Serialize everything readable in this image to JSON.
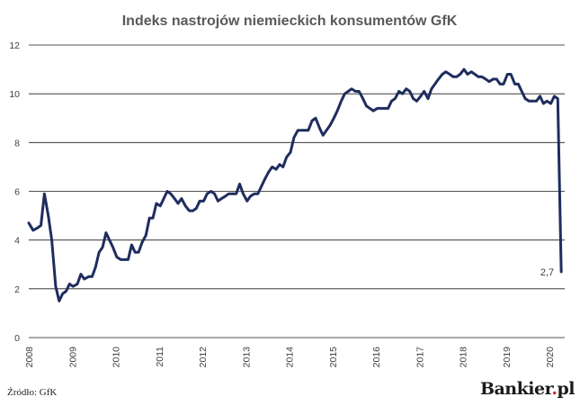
{
  "source_label": "Źródło: GfK",
  "brand": {
    "name": "Bankier",
    "dot": ".",
    "suffix": "pl"
  },
  "chart_data": {
    "type": "line",
    "title": "Indeks nastrojów niemieckich konsumentów GfK",
    "xlabel": "",
    "ylabel": "",
    "ylim": [
      0,
      12
    ],
    "xlim": [
      2008,
      2020.35
    ],
    "grid": true,
    "legend": "none",
    "yticks": [
      "0",
      "2",
      "4",
      "6",
      "8",
      "10",
      "12"
    ],
    "xticks": [
      "2008",
      "2009",
      "2010",
      "2011",
      "2012",
      "2013",
      "2014",
      "2015",
      "2016",
      "2017",
      "2018",
      "2019",
      "2020"
    ],
    "series": [
      {
        "color": "#1f2d5e",
        "points": [
          [
            2008.0,
            4.7
          ],
          [
            2008.1,
            4.4
          ],
          [
            2008.2,
            4.5
          ],
          [
            2008.28,
            4.6
          ],
          [
            2008.36,
            5.9
          ],
          [
            2008.45,
            5.0
          ],
          [
            2008.53,
            4.0
          ],
          [
            2008.62,
            2.1
          ],
          [
            2008.7,
            1.5
          ],
          [
            2008.78,
            1.8
          ],
          [
            2008.86,
            1.9
          ],
          [
            2008.94,
            2.2
          ],
          [
            2009.02,
            2.1
          ],
          [
            2009.12,
            2.2
          ],
          [
            2009.2,
            2.6
          ],
          [
            2009.28,
            2.4
          ],
          [
            2009.38,
            2.5
          ],
          [
            2009.46,
            2.5
          ],
          [
            2009.54,
            2.9
          ],
          [
            2009.62,
            3.5
          ],
          [
            2009.7,
            3.7
          ],
          [
            2009.78,
            4.3
          ],
          [
            2009.86,
            4.0
          ],
          [
            2009.94,
            3.7
          ],
          [
            2010.03,
            3.3
          ],
          [
            2010.12,
            3.2
          ],
          [
            2010.21,
            3.2
          ],
          [
            2010.29,
            3.2
          ],
          [
            2010.37,
            3.8
          ],
          [
            2010.45,
            3.5
          ],
          [
            2010.53,
            3.5
          ],
          [
            2010.61,
            3.9
          ],
          [
            2010.7,
            4.2
          ],
          [
            2010.78,
            4.9
          ],
          [
            2010.86,
            4.9
          ],
          [
            2010.94,
            5.5
          ],
          [
            2011.03,
            5.4
          ],
          [
            2011.11,
            5.7
          ],
          [
            2011.19,
            6.0
          ],
          [
            2011.27,
            5.9
          ],
          [
            2011.36,
            5.7
          ],
          [
            2011.44,
            5.5
          ],
          [
            2011.52,
            5.7
          ],
          [
            2011.61,
            5.4
          ],
          [
            2011.7,
            5.2
          ],
          [
            2011.78,
            5.2
          ],
          [
            2011.86,
            5.3
          ],
          [
            2011.94,
            5.6
          ],
          [
            2012.03,
            5.6
          ],
          [
            2012.11,
            5.9
          ],
          [
            2012.2,
            6.0
          ],
          [
            2012.28,
            5.9
          ],
          [
            2012.36,
            5.6
          ],
          [
            2012.44,
            5.7
          ],
          [
            2012.53,
            5.8
          ],
          [
            2012.61,
            5.9
          ],
          [
            2012.7,
            5.9
          ],
          [
            2012.78,
            5.9
          ],
          [
            2012.86,
            6.3
          ],
          [
            2012.94,
            5.9
          ],
          [
            2013.03,
            5.6
          ],
          [
            2013.11,
            5.8
          ],
          [
            2013.2,
            5.9
          ],
          [
            2013.28,
            5.9
          ],
          [
            2013.36,
            6.2
          ],
          [
            2013.44,
            6.5
          ],
          [
            2013.53,
            6.8
          ],
          [
            2013.61,
            7.0
          ],
          [
            2013.7,
            6.9
          ],
          [
            2013.78,
            7.1
          ],
          [
            2013.86,
            7.0
          ],
          [
            2013.94,
            7.4
          ],
          [
            2014.03,
            7.6
          ],
          [
            2014.11,
            8.2
          ],
          [
            2014.2,
            8.5
          ],
          [
            2014.28,
            8.5
          ],
          [
            2014.36,
            8.5
          ],
          [
            2014.44,
            8.5
          ],
          [
            2014.53,
            8.9
          ],
          [
            2014.61,
            9.0
          ],
          [
            2014.7,
            8.6
          ],
          [
            2014.78,
            8.3
          ],
          [
            2014.86,
            8.5
          ],
          [
            2014.94,
            8.7
          ],
          [
            2015.03,
            9.0
          ],
          [
            2015.11,
            9.3
          ],
          [
            2015.2,
            9.7
          ],
          [
            2015.28,
            10.0
          ],
          [
            2015.36,
            10.1
          ],
          [
            2015.44,
            10.2
          ],
          [
            2015.53,
            10.1
          ],
          [
            2015.61,
            10.1
          ],
          [
            2015.7,
            9.8
          ],
          [
            2015.78,
            9.5
          ],
          [
            2015.86,
            9.4
          ],
          [
            2015.94,
            9.3
          ],
          [
            2016.03,
            9.4
          ],
          [
            2016.11,
            9.4
          ],
          [
            2016.2,
            9.4
          ],
          [
            2016.28,
            9.4
          ],
          [
            2016.36,
            9.7
          ],
          [
            2016.44,
            9.8
          ],
          [
            2016.53,
            10.1
          ],
          [
            2016.61,
            10.0
          ],
          [
            2016.7,
            10.2
          ],
          [
            2016.78,
            10.1
          ],
          [
            2016.86,
            9.8
          ],
          [
            2016.94,
            9.7
          ],
          [
            2017.03,
            9.9
          ],
          [
            2017.11,
            10.1
          ],
          [
            2017.2,
            9.8
          ],
          [
            2017.28,
            10.2
          ],
          [
            2017.36,
            10.4
          ],
          [
            2017.44,
            10.6
          ],
          [
            2017.53,
            10.8
          ],
          [
            2017.61,
            10.9
          ],
          [
            2017.7,
            10.8
          ],
          [
            2017.78,
            10.7
          ],
          [
            2017.86,
            10.7
          ],
          [
            2017.94,
            10.8
          ],
          [
            2018.03,
            11.0
          ],
          [
            2018.11,
            10.8
          ],
          [
            2018.2,
            10.9
          ],
          [
            2018.28,
            10.8
          ],
          [
            2018.36,
            10.7
          ],
          [
            2018.44,
            10.7
          ],
          [
            2018.53,
            10.6
          ],
          [
            2018.61,
            10.5
          ],
          [
            2018.7,
            10.6
          ],
          [
            2018.78,
            10.6
          ],
          [
            2018.86,
            10.4
          ],
          [
            2018.94,
            10.4
          ],
          [
            2019.03,
            10.8
          ],
          [
            2019.11,
            10.8
          ],
          [
            2019.2,
            10.4
          ],
          [
            2019.28,
            10.4
          ],
          [
            2019.36,
            10.1
          ],
          [
            2019.44,
            9.8
          ],
          [
            2019.53,
            9.7
          ],
          [
            2019.61,
            9.7
          ],
          [
            2019.7,
            9.7
          ],
          [
            2019.78,
            9.9
          ],
          [
            2019.86,
            9.6
          ],
          [
            2019.94,
            9.7
          ],
          [
            2020.03,
            9.6
          ],
          [
            2020.11,
            9.9
          ],
          [
            2020.19,
            9.8
          ],
          [
            2020.27,
            2.7
          ]
        ]
      }
    ],
    "annotations": [
      {
        "text": "2,7",
        "x": 2020.27,
        "y": 2.7
      }
    ]
  }
}
